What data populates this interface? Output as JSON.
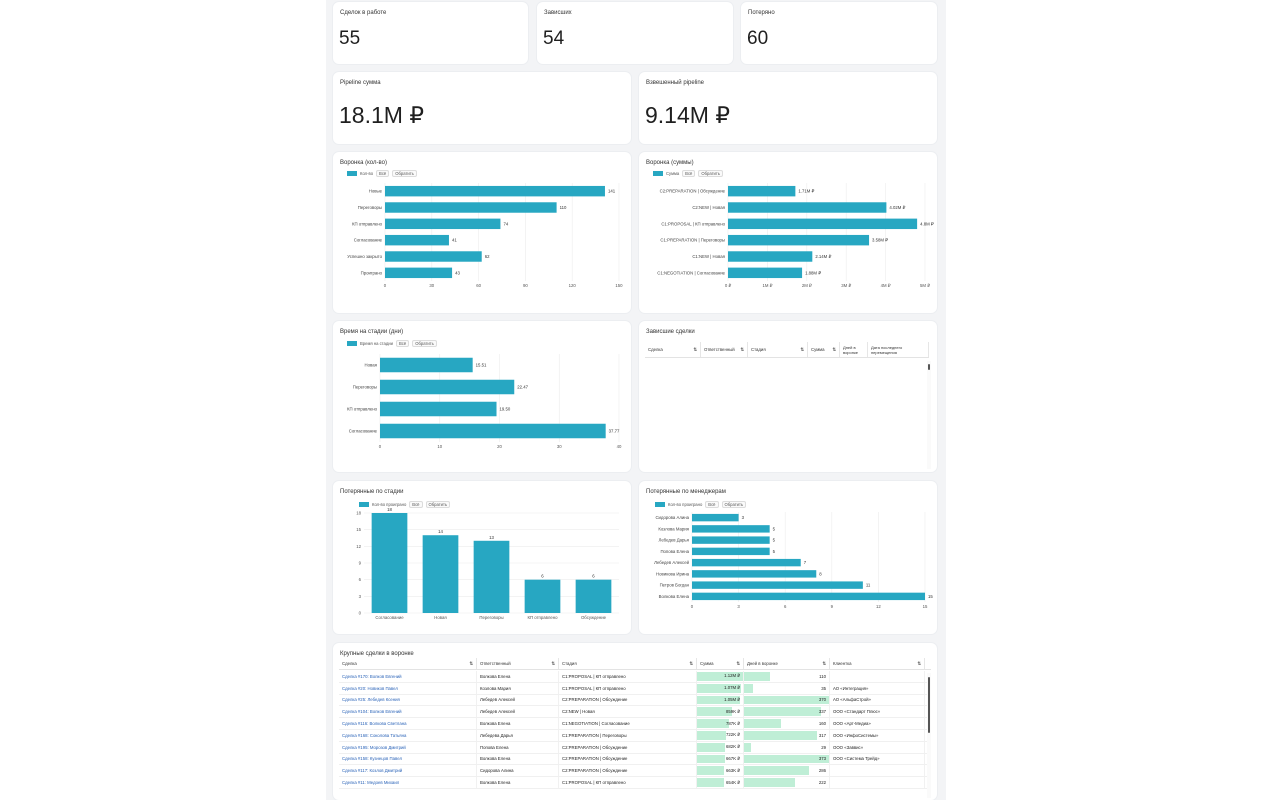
{
  "metrics_row1": [
    {
      "label": "Сделок в работе",
      "value": "55"
    },
    {
      "label": "Зависших",
      "value": "54"
    },
    {
      "label": "Потеряно",
      "value": "60"
    }
  ],
  "metrics_row2": [
    {
      "label": "Pipeline сумма",
      "value": "18.1M ₽"
    },
    {
      "label": "Взвешенный pipeline",
      "value": "9.14M ₽"
    }
  ],
  "common": {
    "btn_all": "Всё",
    "btn_invert": "Обратить"
  },
  "colors": {
    "bar": "#27a7c2",
    "green": "#bfeed6"
  },
  "funnel_count": {
    "title": "Воронка (кол-во)",
    "legend": "Кол-во",
    "chart_data": {
      "type": "bar",
      "orientation": "horizontal",
      "categories": [
        "Новые",
        "Переговоры",
        "КП отправлено",
        "Согласование",
        "Успешно закрыто",
        "Проиграно"
      ],
      "values": [
        141,
        110,
        74,
        41,
        62,
        43
      ],
      "xlim": [
        0,
        150
      ],
      "xticks": [
        0,
        30,
        60,
        90,
        120,
        150
      ]
    }
  },
  "funnel_sum": {
    "title": "Воронка (суммы)",
    "legend": "Сумма",
    "chart_data": {
      "type": "bar",
      "orientation": "horizontal",
      "categories": [
        "C2:PREPARATION | Обсуждение",
        "C2:NEW | Новая",
        "C1:PROPOSAL | КП отправлено",
        "C1:PREPARATION | Переговоры",
        "C1:NEW | Новая",
        "C1:NEGOTIATION | Согласование"
      ],
      "values": [
        1.71,
        4.02,
        4.8,
        3.58,
        2.14,
        1.88
      ],
      "labels": [
        "1.71M ₽",
        "4.02M ₽",
        "4.8M ₽",
        "3.58M ₽",
        "2.14M ₽",
        "1.88M ₽"
      ],
      "xlim": [
        0,
        5
      ],
      "xtick_values": [
        0,
        1,
        2,
        3,
        4,
        5
      ],
      "xticks": [
        "0 ₽",
        "1M ₽",
        "2M ₽",
        "3M ₽",
        "4M ₽",
        "5M ₽"
      ]
    }
  },
  "stage_time": {
    "title": "Время на стадии (дни)",
    "legend": "Время на стадии",
    "chart_data": {
      "type": "bar",
      "orientation": "horizontal",
      "categories": [
        "Новая",
        "Переговоры",
        "КП отправлено",
        "Согласование"
      ],
      "values": [
        15.51,
        22.47,
        19.5,
        37.77
      ],
      "labels": [
        "15.51",
        "22.47",
        "19.50",
        "37.77"
      ],
      "xlim": [
        0,
        40
      ],
      "xticks": [
        0,
        10,
        20,
        30,
        40
      ]
    }
  },
  "stuck_deals": {
    "title": "Зависшие сделки",
    "columns": [
      "Сделка",
      "Ответственный",
      "Стадия",
      "Сумма",
      "Дней в воронке",
      "Дата последнего перемещения"
    ]
  },
  "lost_stage": {
    "title": "Потерянные по стадии",
    "legend": "Кол-во проиграно",
    "chart_data": {
      "type": "bar",
      "orientation": "vertical",
      "categories": [
        "Согласование",
        "Новая",
        "Переговоры",
        "КП отправлено",
        "Обсуждение"
      ],
      "values": [
        18,
        14,
        13,
        6,
        6
      ],
      "ylim": [
        0,
        18
      ],
      "yticks": [
        0,
        3,
        6,
        9,
        12,
        15,
        18
      ]
    }
  },
  "lost_managers": {
    "title": "Потерянные по менеджерам",
    "legend": "Кол-во проиграно",
    "chart_data": {
      "type": "bar",
      "orientation": "horizontal",
      "categories": [
        "Сидорова Алина",
        "Козлова Мария",
        "Лебедев Дарья",
        "Попова Елена",
        "Лебедев Алексей",
        "Новикова Ирина",
        "Петров Богдан",
        "Волкова Елена"
      ],
      "values": [
        3,
        5,
        5,
        5,
        7,
        8,
        11,
        15
      ],
      "xlim": [
        0,
        15
      ],
      "xticks": [
        0,
        3,
        6,
        9,
        12,
        15
      ]
    }
  },
  "big_deals": {
    "title": "Крупные сделки в воронке",
    "columns": [
      "Сделка",
      "Ответственный",
      "Стадия",
      "Сумма",
      "Дней в воронке",
      "Клиентка"
    ],
    "rows": [
      {
        "deal": "Сделка #170: Волков Евгений",
        "owner": "Волкова Елена",
        "stage": "C1:PROPOSAL | КП отправлено",
        "sum": "1.12M ₽",
        "sum_frac": 1.0,
        "days": "110",
        "days_frac": 0.3,
        "client": ""
      },
      {
        "deal": "Сделка #20: Новиков Павел",
        "owner": "Козлова Мария",
        "stage": "C1:PROPOSAL | КП отправлено",
        "sum": "1.07M ₽",
        "sum_frac": 0.95,
        "days": "35",
        "days_frac": 0.1,
        "client": "АО «Интеграция»"
      },
      {
        "deal": "Сделка #25: Лебедев Ксения",
        "owner": "Лебедев Алексей",
        "stage": "C2:PREPARATION | Обсуждение",
        "sum": "1.05M ₽",
        "sum_frac": 0.93,
        "days": "370",
        "days_frac": 1.0,
        "client": "АО «АльфаСтрой»"
      },
      {
        "deal": "Сделка #104: Волков Евгений",
        "owner": "Лебедев Алексей",
        "stage": "C2:NEW | Новая",
        "sum": "859K ₽",
        "sum_frac": 0.77,
        "days": "337",
        "days_frac": 0.91,
        "client": "ООО «Стандарт Плюс»"
      },
      {
        "deal": "Сделка #116: Волкова Светлана",
        "owner": "Волкова Елена",
        "stage": "C1:NEGOTIATION | Согласование",
        "sum": "787K ₽",
        "sum_frac": 0.7,
        "days": "160",
        "days_frac": 0.43,
        "client": "ООО «Арт-Медиа»"
      },
      {
        "deal": "Сделка #168: Соколова Татьяна",
        "owner": "Лебедева Дарья",
        "stage": "C1:PREPARATION | Переговоры",
        "sum": "722K ₽",
        "sum_frac": 0.64,
        "days": "317",
        "days_frac": 0.86,
        "client": "ООО «ИнфоСистемы»"
      },
      {
        "deal": "Сделка #195: Морозов Дмитрий",
        "owner": "Попова Елена",
        "stage": "C2:PREPARATION | Обсуждение",
        "sum": "682K ₽",
        "sum_frac": 0.61,
        "days": "29",
        "days_frac": 0.08,
        "client": "ООО «Заввис»"
      },
      {
        "deal": "Сделка #158: Кузнецов Павел",
        "owner": "Волкова Елена",
        "stage": "C2:PREPARATION | Обсуждение",
        "sum": "667K ₽",
        "sum_frac": 0.6,
        "days": "373",
        "days_frac": 1.0,
        "client": "ООО «Система Трейд»"
      },
      {
        "deal": "Сделка #117: Козлов Дмитрий",
        "owner": "Сидорова Алина",
        "stage": "C2:PREPARATION | Обсуждение",
        "sum": "663K ₽",
        "sum_frac": 0.59,
        "days": "286",
        "days_frac": 0.77,
        "client": ""
      },
      {
        "deal": "Сделка #11: Медоев Михаил",
        "owner": "Волкова Елена",
        "stage": "C1:PROPOSAL | КП отправлено",
        "sum": "654K ₽",
        "sum_frac": 0.58,
        "days": "222",
        "days_frac": 0.6,
        "client": ""
      }
    ]
  }
}
